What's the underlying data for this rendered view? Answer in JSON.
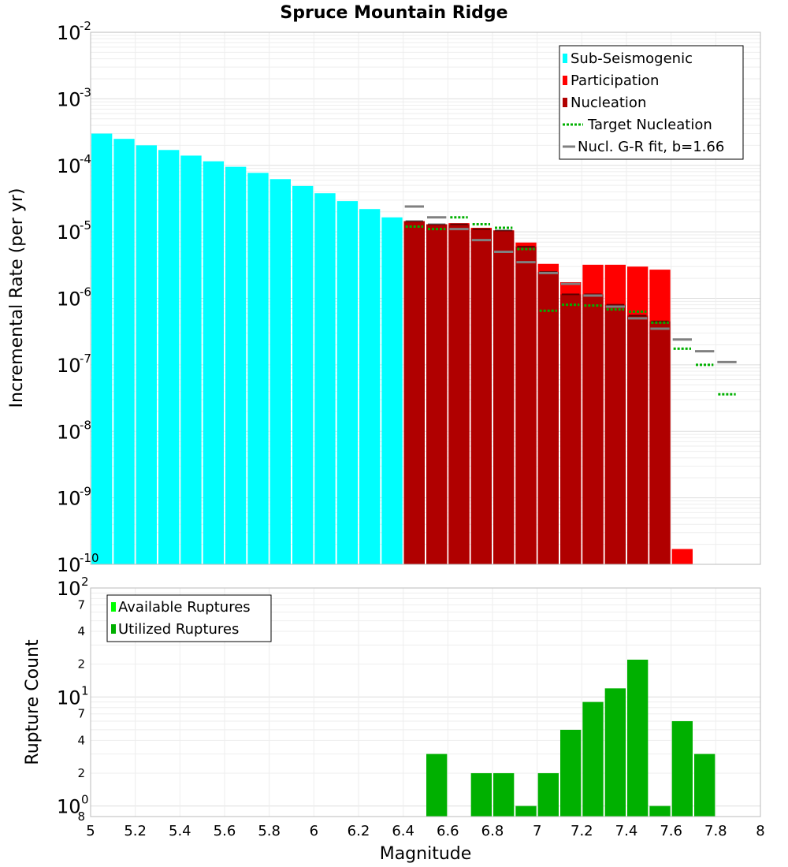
{
  "chart_data": [
    {
      "type": "bar",
      "title": "Spruce Mountain Ridge",
      "xlabel": "",
      "ylabel": "Incremental Rate (per yr)",
      "yscale": "log",
      "xlim": [
        5,
        8
      ],
      "ylim": [
        1e-10,
        0.01
      ],
      "bin_width": 0.1,
      "legend_position": "top-right",
      "colors": {
        "sub_seismogenic": "#00ffff",
        "participation": "#ff0000",
        "nucleation": "#b00000",
        "target_nucleation": "#00b000",
        "gr_fit": "#808080"
      },
      "legend": [
        {
          "key": "sub_seismogenic",
          "label": "Sub-Seismogenic"
        },
        {
          "key": "participation",
          "label": "Participation"
        },
        {
          "key": "nucleation",
          "label": "Nucleation"
        },
        {
          "key": "target_nucleation",
          "label": "Target Nucleation"
        },
        {
          "key": "gr_fit",
          "label": "Nucl. G-R fit, b=1.66"
        }
      ],
      "y_tick_labels": [
        {
          "exp": -2,
          "base": "10",
          "sup": "-2"
        },
        {
          "exp": -3,
          "base": "10",
          "sup": "-3"
        },
        {
          "exp": -4,
          "base": "10",
          "sup": "-4"
        },
        {
          "exp": -5,
          "base": "10",
          "sup": "-5"
        },
        {
          "exp": -6,
          "base": "10",
          "sup": "-6"
        },
        {
          "exp": -7,
          "base": "10",
          "sup": "-7"
        },
        {
          "exp": -8,
          "base": "10",
          "sup": "-8"
        },
        {
          "exp": -9,
          "base": "10",
          "sup": "-9"
        },
        {
          "exp": -10,
          "base": "10",
          "sup": "-10"
        }
      ],
      "sub_seismogenic": {
        "x": [
          5.05,
          5.15,
          5.25,
          5.35,
          5.45,
          5.55,
          5.65,
          5.75,
          5.85,
          5.95,
          6.05,
          6.15,
          6.25,
          6.35
        ],
        "values": [
          0.0003,
          0.00025,
          0.0002,
          0.00017,
          0.00014,
          0.000115,
          9.5e-05,
          7.7e-05,
          6.2e-05,
          4.9e-05,
          3.8e-05,
          2.9e-05,
          2.2e-05,
          1.65e-05
        ]
      },
      "participation": {
        "x": [
          6.45,
          6.55,
          6.65,
          6.75,
          6.85,
          6.95,
          7.05,
          7.15,
          7.25,
          7.35,
          7.45,
          7.55,
          7.65
        ],
        "values": [
          1.45e-05,
          1.3e-05,
          1.35e-05,
          1.15e-05,
          1.05e-05,
          6.9e-06,
          3.3e-06,
          1.75e-06,
          3.2e-06,
          3.2e-06,
          3e-06,
          2.7e-06,
          1.7e-10
        ]
      },
      "nucleation": {
        "x": [
          6.45,
          6.55,
          6.65,
          6.75,
          6.85,
          6.95,
          7.05,
          7.15,
          7.25,
          7.35,
          7.45,
          7.55
        ],
        "values": [
          1.45e-05,
          1.3e-05,
          1.3e-05,
          1.1e-05,
          1.05e-05,
          6e-06,
          2.5e-06,
          1.15e-06,
          1.15e-06,
          8e-07,
          5.5e-07,
          4.5e-07
        ]
      },
      "target_nucleation": {
        "x": [
          6.45,
          6.55,
          6.65,
          6.75,
          6.85,
          6.95,
          7.05,
          7.15,
          7.25,
          7.35,
          7.45,
          7.55,
          7.65,
          7.75,
          7.85
        ],
        "values": [
          1.2e-05,
          1.1e-05,
          1.65e-05,
          1.3e-05,
          1.15e-05,
          5.5e-06,
          6.5e-07,
          8e-07,
          7.8e-07,
          6.8e-07,
          6.3e-07,
          4.3e-07,
          1.75e-07,
          1e-07,
          3.6e-08
        ]
      },
      "gr_fit": {
        "x": [
          6.45,
          6.55,
          6.65,
          6.75,
          6.85,
          6.95,
          7.05,
          7.15,
          7.25,
          7.35,
          7.45,
          7.55,
          7.65,
          7.75,
          7.85
        ],
        "values": [
          2.4e-05,
          1.65e-05,
          1.1e-05,
          7.5e-06,
          5e-06,
          3.5e-06,
          2.4e-06,
          1.65e-06,
          1.1e-06,
          7.5e-07,
          5e-07,
          3.5e-07,
          2.4e-07,
          1.6e-07,
          1.1e-07
        ]
      }
    },
    {
      "type": "bar",
      "title": "",
      "xlabel": "Magnitude",
      "ylabel": "Rupture Count",
      "yscale": "log",
      "xlim": [
        5,
        8
      ],
      "ylim": [
        0.8,
        100
      ],
      "bin_width": 0.1,
      "legend_position": "top-left",
      "colors": {
        "available": "#00ff00",
        "utilized": "#00b000"
      },
      "legend": [
        {
          "key": "available",
          "label": "Available Ruptures"
        },
        {
          "key": "utilized",
          "label": "Utilized Ruptures"
        }
      ],
      "x_tick_labels": [
        "5",
        "5.2",
        "5.4",
        "5.6",
        "5.8",
        "6",
        "6.2",
        "6.4",
        "6.6",
        "6.8",
        "7",
        "7.2",
        "7.4",
        "7.6",
        "7.8",
        "8"
      ],
      "y_major_labels": [
        {
          "value": 100,
          "base": "10",
          "sup": "2"
        },
        {
          "value": 10,
          "base": "10",
          "sup": "1"
        },
        {
          "value": 1,
          "base": "10",
          "sup": "0"
        }
      ],
      "y_minor_labels": [
        {
          "value": 70,
          "label": "7"
        },
        {
          "value": 40,
          "label": "4"
        },
        {
          "value": 20,
          "label": "2"
        },
        {
          "value": 7,
          "label": "7"
        },
        {
          "value": 4,
          "label": "4"
        },
        {
          "value": 2,
          "label": "2"
        },
        {
          "value": 0.8,
          "label": "8"
        }
      ],
      "utilized": {
        "x": [
          6.55,
          6.75,
          6.85,
          6.95,
          7.05,
          7.15,
          7.25,
          7.35,
          7.45,
          7.55,
          7.65,
          7.75
        ],
        "values": [
          3,
          2,
          2,
          1,
          2,
          5,
          9,
          12,
          22,
          1,
          6,
          3
        ]
      },
      "available": {
        "x": [
          6.55,
          6.75,
          6.85,
          6.95,
          7.05,
          7.15,
          7.25,
          7.35,
          7.45,
          7.55,
          7.65,
          7.75
        ],
        "values": [
          3,
          2,
          2,
          1,
          2,
          5,
          9,
          12,
          22,
          1,
          6,
          3
        ]
      }
    }
  ]
}
